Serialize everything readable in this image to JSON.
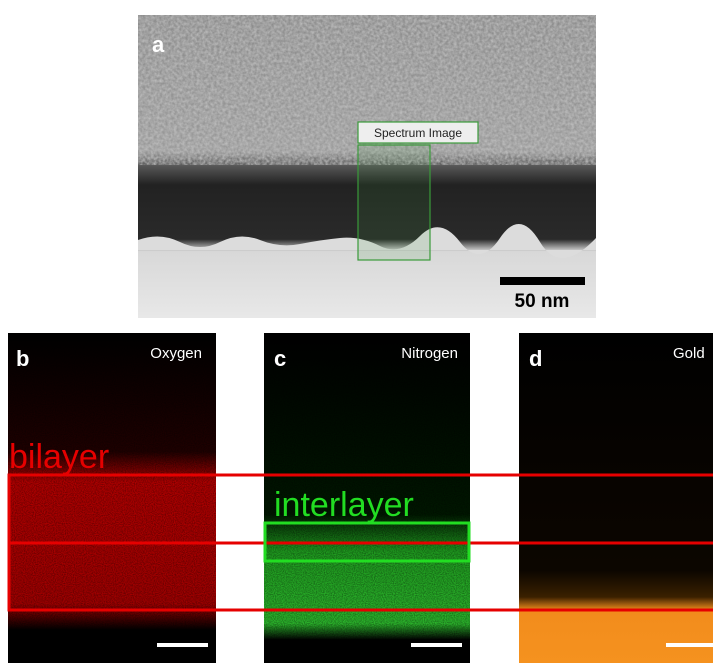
{
  "panels": [
    {
      "label": "a",
      "box_label": "Spectrum Image",
      "scale_bar": "50 nm"
    },
    {
      "label": "b",
      "element": "Oxygen"
    },
    {
      "label": "c",
      "element": "Nitrogen"
    },
    {
      "label": "d",
      "element": "Gold"
    }
  ],
  "annotations": {
    "bilayer": "bilayer",
    "interlayer": "interlayer"
  }
}
